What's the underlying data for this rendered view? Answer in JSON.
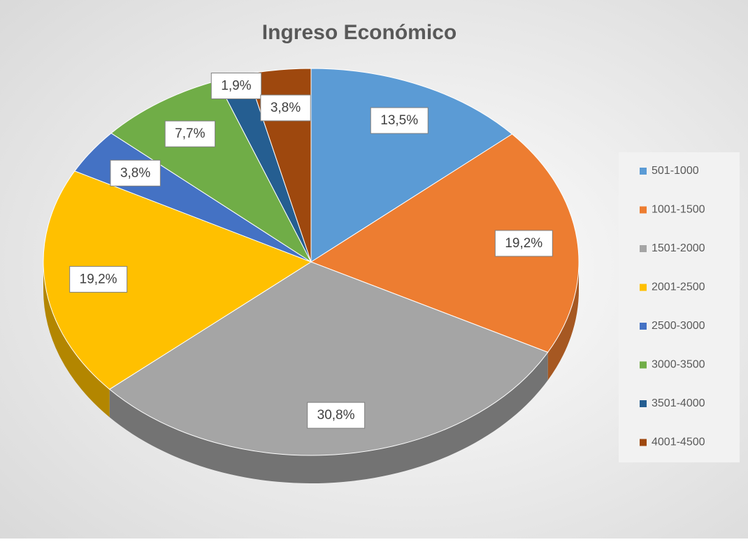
{
  "chart_data": {
    "type": "pie",
    "title": "Ingreso Económico",
    "categories": [
      "501-1000",
      "1001-1500",
      "1501-2000",
      "2001-2500",
      "2500-3000",
      "3000-3500",
      "3501-4000",
      "4001-4500"
    ],
    "values": [
      13.5,
      19.2,
      30.8,
      19.2,
      3.8,
      7.7,
      1.9,
      3.8
    ],
    "value_labels": [
      "13,5%",
      "19,2%",
      "30,8%",
      "19,2%",
      "3,8%",
      "7,7%",
      "1,9%",
      "3,8%"
    ],
    "colors": [
      "#5b9bd5",
      "#ed7d31",
      "#a5a5a5",
      "#ffc000",
      "#4472c4",
      "#70ad47",
      "#255e91",
      "#9e480e"
    ],
    "legend": "right"
  }
}
